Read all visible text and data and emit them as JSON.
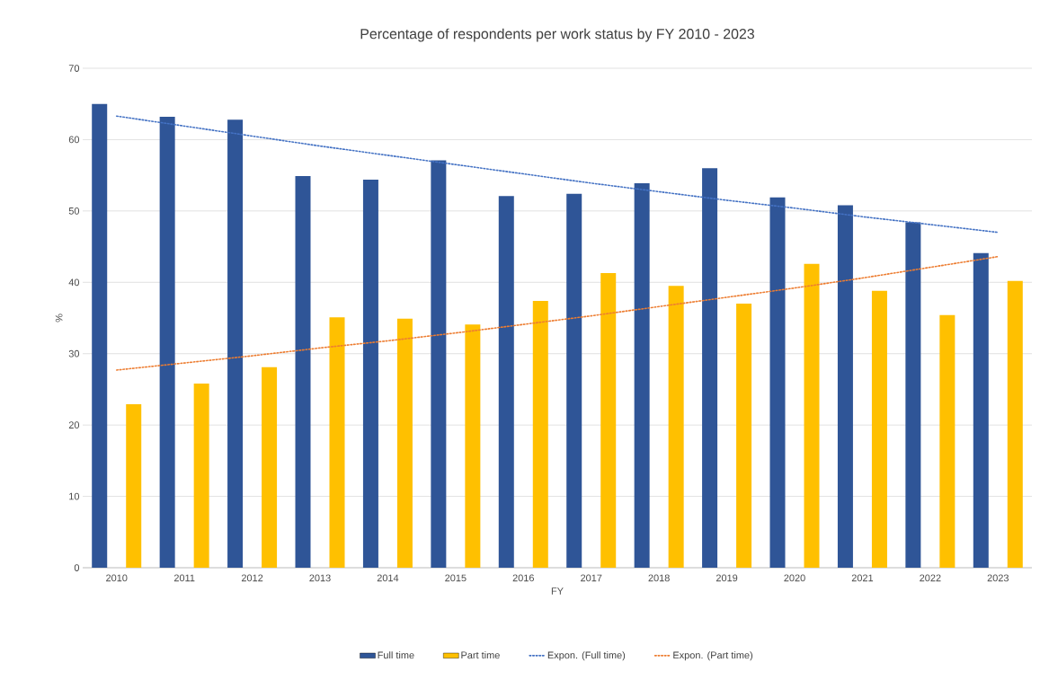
{
  "chart_data": {
    "type": "bar",
    "title": "Percentage of respondents per work status by FY 2010 - 2023",
    "xlabel": "FY",
    "ylabel": "%",
    "categories": [
      "2010",
      "2011",
      "2012",
      "2013",
      "2014",
      "2015",
      "2016",
      "2017",
      "2018",
      "2019",
      "2020",
      "2021",
      "2022",
      "2023"
    ],
    "series": [
      {
        "name": "Full time",
        "color": "#2f5597",
        "values": [
          65,
          63.2,
          62.8,
          54.9,
          54.4,
          57.1,
          52.1,
          52.4,
          53.9,
          56.0,
          51.9,
          50.8,
          48.4,
          44.1
        ]
      },
      {
        "name": "Part time",
        "color": "#ffc000",
        "values": [
          22.9,
          25.8,
          28.1,
          35.1,
          34.9,
          34.1,
          37.4,
          41.3,
          39.5,
          37.0,
          42.6,
          38.8,
          35.4,
          40.2
        ]
      },
      {
        "name": "Expon. (Full time)",
        "type": "line",
        "line_style": "dotted",
        "color": "#4472c4",
        "values": [
          63.3,
          61.9,
          60.5,
          59.1,
          57.8,
          56.5,
          55.2,
          53.9,
          52.7,
          51.5,
          50.4,
          49.2,
          48.1,
          47.0
        ]
      },
      {
        "name": "Expon. (Part time)",
        "type": "line",
        "line_style": "dotted",
        "color": "#ed7d31",
        "values": [
          27.7,
          28.7,
          29.7,
          30.8,
          31.8,
          32.9,
          34.1,
          35.3,
          36.6,
          37.9,
          39.2,
          40.6,
          42.1,
          43.6
        ]
      }
    ],
    "ylim": [
      0,
      70
    ],
    "yticks": [
      0,
      10,
      20,
      30,
      40,
      50,
      60,
      70
    ],
    "grid": "y",
    "legend": "bottom",
    "marker": "none"
  }
}
